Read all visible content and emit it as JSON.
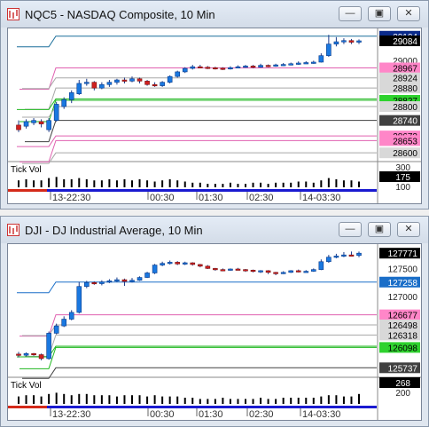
{
  "windows": [
    {
      "title": "NQC5 - NASDAQ Composite, 10 Min",
      "buttons": {
        "minimize": "minimize",
        "restore": "restore",
        "close": "close"
      },
      "price_labels": [
        "29104",
        "29084",
        "29000",
        "28967",
        "28924",
        "28880",
        "28827",
        "28800",
        "28740",
        "28673",
        "28653",
        "28600"
      ],
      "price_badges": {
        "29104": {
          "bg": "#0a2a8a",
          "fg": "#ffffff"
        },
        "29084": {
          "bg": "#000000",
          "fg": "#ffffff"
        },
        "28967": {
          "bg": "#ff86c8",
          "fg": "#000000"
        },
        "28924": {
          "bg": "#d8d8d8",
          "fg": "#000000"
        },
        "28880": {
          "bg": "#d8d8d8",
          "fg": "#000000"
        },
        "28827": {
          "bg": "#2ed22e",
          "fg": "#000000"
        },
        "28800": {
          "bg": "#d8d8d8",
          "fg": "#000000"
        },
        "28740": {
          "bg": "#404040",
          "fg": "#ffffff"
        },
        "28673": {
          "bg": "#ff86c8",
          "fg": "#000000"
        },
        "28653": {
          "bg": "#ff86c8",
          "fg": "#000000"
        },
        "28600": {
          "bg": "#d8d8d8",
          "fg": "#000000"
        }
      },
      "volume_label": "Tick Vol",
      "volume_axis": [
        "300",
        "175",
        "100"
      ],
      "time_labels": [
        "13-22:30",
        "00:30",
        "01:30",
        "02:30",
        "14-03:30"
      ],
      "chart_data": {
        "type": "candlestick",
        "y_range": [
          28570,
          29130
        ],
        "levels": [
          {
            "price": 29104,
            "color": "#1a6e9a"
          },
          {
            "price": 28967,
            "color": "#e060b0"
          },
          {
            "price": 28924,
            "color": "#a8a8a8"
          },
          {
            "price": 28880,
            "color": "#a8a8a8"
          },
          {
            "price": 28833,
            "color": "#20b820"
          },
          {
            "price": 28827,
            "color": "#20b820"
          },
          {
            "price": 28800,
            "color": "#a8a8a8"
          },
          {
            "price": 28740,
            "color": "#404040"
          },
          {
            "price": 28673,
            "color": "#e060b0"
          },
          {
            "price": 28653,
            "color": "#e060b0"
          },
          {
            "price": 28600,
            "color": "#a8a8a8"
          }
        ],
        "candles": [
          [
            28720,
            28700,
            28740,
            28690
          ],
          [
            28715,
            28735,
            28745,
            28705
          ],
          [
            28730,
            28740,
            28750,
            28720
          ],
          [
            28735,
            28725,
            28745,
            28710
          ],
          [
            28700,
            28740,
            28750,
            28690
          ],
          [
            28740,
            28810,
            28820,
            28735
          ],
          [
            28800,
            28830,
            28840,
            28790
          ],
          [
            28830,
            28860,
            28870,
            28815
          ],
          [
            28855,
            28900,
            28915,
            28850
          ],
          [
            28900,
            28905,
            28920,
            28890
          ],
          [
            28905,
            28880,
            28910,
            28870
          ],
          [
            28880,
            28895,
            28905,
            28875
          ],
          [
            28895,
            28905,
            28915,
            28885
          ],
          [
            28905,
            28915,
            28920,
            28895
          ],
          [
            28915,
            28910,
            28925,
            28900
          ],
          [
            28910,
            28920,
            28930,
            28905
          ],
          [
            28920,
            28910,
            28925,
            28900
          ],
          [
            28910,
            28895,
            28915,
            28890
          ],
          [
            28895,
            28890,
            28905,
            28885
          ],
          [
            28890,
            28905,
            28910,
            28885
          ],
          [
            28905,
            28930,
            28935,
            28900
          ],
          [
            28930,
            28950,
            28955,
            28925
          ],
          [
            28950,
            28965,
            28970,
            28945
          ],
          [
            28965,
            28972,
            28980,
            28960
          ],
          [
            28972,
            28970,
            28980,
            28965
          ],
          [
            28970,
            28968,
            28975,
            28962
          ],
          [
            28968,
            28966,
            28972,
            28960
          ],
          [
            28966,
            28964,
            28970,
            28958
          ],
          [
            28964,
            28968,
            28974,
            28960
          ],
          [
            28968,
            28972,
            28978,
            28965
          ],
          [
            28972,
            28975,
            28980,
            28968
          ],
          [
            28975,
            28970,
            28980,
            28965
          ],
          [
            28970,
            28978,
            28985,
            28968
          ],
          [
            28978,
            28975,
            28982,
            28970
          ],
          [
            28975,
            28980,
            28985,
            28972
          ],
          [
            28980,
            28982,
            28988,
            28975
          ],
          [
            28982,
            28985,
            28990,
            28978
          ],
          [
            28985,
            28988,
            28995,
            28980
          ],
          [
            28988,
            28990,
            28996,
            28984
          ],
          [
            28990,
            28992,
            28998,
            28985
          ],
          [
            28992,
            29020,
            29030,
            28990
          ],
          [
            29020,
            29070,
            29110,
            29015
          ],
          [
            29070,
            29080,
            29100,
            29060
          ],
          [
            29080,
            29085,
            29095,
            29070
          ],
          [
            29085,
            29078,
            29092,
            29070
          ],
          [
            29078,
            29084,
            29090,
            29070
          ]
        ],
        "volumes": [
          0.6,
          0.7,
          0.6,
          0.6,
          0.8,
          0.9,
          0.7,
          0.7,
          0.8,
          0.7,
          0.6,
          0.6,
          0.7,
          0.6,
          0.7,
          0.6,
          0.7,
          0.6,
          0.5,
          0.6,
          0.7,
          0.6,
          0.5,
          0.4,
          0.4,
          0.3,
          0.3,
          0.3,
          0.4,
          0.3,
          0.3,
          0.4,
          0.4,
          0.3,
          0.4,
          0.4,
          0.4,
          0.5,
          0.5,
          0.4,
          0.6,
          0.8,
          0.7,
          0.6,
          0.6,
          0.5
        ]
      }
    },
    {
      "title": "DJI - DJ Industrial Average, 10 Min",
      "buttons": {
        "minimize": "minimize",
        "restore": "restore",
        "close": "close"
      },
      "price_labels": [
        "127771",
        "127500",
        "127258",
        "127000",
        "126677",
        "126498",
        "126318",
        "126098",
        "125737"
      ],
      "price_badges": {
        "127771": {
          "bg": "#000000",
          "fg": "#ffffff"
        },
        "127258": {
          "bg": "#1a6ec8",
          "fg": "#ffffff"
        },
        "126677": {
          "bg": "#ff86c8",
          "fg": "#000000"
        },
        "126498": {
          "bg": "#d8d8d8",
          "fg": "#000000"
        },
        "126318": {
          "bg": "#d8d8d8",
          "fg": "#000000"
        },
        "126098": {
          "bg": "#2ed22e",
          "fg": "#000000"
        },
        "125737": {
          "bg": "#404040",
          "fg": "#ffffff"
        }
      },
      "volume_label": "Tick Vol",
      "volume_axis": [
        "268",
        "200"
      ],
      "time_labels": [
        "13-22:30",
        "00:30",
        "01:30",
        "02:30",
        "14-03:30"
      ],
      "chart_data": {
        "type": "candlestick",
        "y_range": [
          125600,
          127900
        ],
        "levels": [
          {
            "price": 127258,
            "color": "#1a6ec8"
          },
          {
            "price": 126677,
            "color": "#e060b0"
          },
          {
            "price": 126498,
            "color": "#a8a8a8"
          },
          {
            "price": 126318,
            "color": "#a8a8a8"
          },
          {
            "price": 126120,
            "color": "#20b820"
          },
          {
            "price": 126098,
            "color": "#20b820"
          },
          {
            "price": 125737,
            "color": "#404040"
          }
        ],
        "candles": [
          [
            125980,
            125960,
            126020,
            125920
          ],
          [
            125960,
            125990,
            126010,
            125940
          ],
          [
            125990,
            125970,
            126000,
            125950
          ],
          [
            125970,
            125900,
            125990,
            125870
          ],
          [
            125900,
            126350,
            126380,
            125880
          ],
          [
            126350,
            126480,
            126520,
            126330
          ],
          [
            126480,
            126600,
            126650,
            126460
          ],
          [
            126600,
            126720,
            126760,
            126580
          ],
          [
            126720,
            127180,
            127260,
            126700
          ],
          [
            127180,
            127250,
            127280,
            127150
          ],
          [
            127250,
            127230,
            127270,
            127210
          ],
          [
            127230,
            127260,
            127290,
            127200
          ],
          [
            127260,
            127280,
            127310,
            127240
          ],
          [
            127280,
            127300,
            127340,
            127260
          ],
          [
            127300,
            127270,
            127320,
            127190
          ],
          [
            127270,
            127290,
            127330,
            127250
          ],
          [
            127290,
            127340,
            127360,
            127280
          ],
          [
            127340,
            127420,
            127440,
            127330
          ],
          [
            127420,
            127560,
            127580,
            127400
          ],
          [
            127560,
            127590,
            127620,
            127540
          ],
          [
            127590,
            127610,
            127640,
            127570
          ],
          [
            127610,
            127580,
            127630,
            127560
          ],
          [
            127580,
            127600,
            127620,
            127560
          ],
          [
            127600,
            127570,
            127610,
            127550
          ],
          [
            127570,
            127540,
            127580,
            127520
          ],
          [
            127540,
            127500,
            127560,
            127490
          ],
          [
            127500,
            127480,
            127510,
            127460
          ],
          [
            127480,
            127470,
            127500,
            127450
          ],
          [
            127470,
            127490,
            127500,
            127460
          ],
          [
            127490,
            127480,
            127510,
            127470
          ],
          [
            127480,
            127470,
            127490,
            127440
          ],
          [
            127470,
            127450,
            127480,
            127430
          ],
          [
            127450,
            127460,
            127470,
            127420
          ],
          [
            127460,
            127430,
            127470,
            127400
          ],
          [
            127430,
            127410,
            127440,
            127380
          ],
          [
            127410,
            127430,
            127450,
            127400
          ],
          [
            127430,
            127460,
            127470,
            127420
          ],
          [
            127460,
            127440,
            127480,
            127430
          ],
          [
            127440,
            127450,
            127470,
            127430
          ],
          [
            127450,
            127480,
            127500,
            127440
          ],
          [
            127480,
            127620,
            127660,
            127470
          ],
          [
            127620,
            127700,
            127740,
            127600
          ],
          [
            127700,
            127720,
            127760,
            127680
          ],
          [
            127720,
            127740,
            127790,
            127700
          ],
          [
            127740,
            127730,
            127800,
            127720
          ],
          [
            127730,
            127771,
            127800,
            127700
          ]
        ],
        "volumes": [
          0.6,
          0.7,
          0.7,
          0.6,
          0.8,
          0.9,
          0.8,
          0.7,
          0.8,
          0.8,
          0.7,
          0.7,
          0.7,
          0.6,
          0.7,
          0.7,
          0.7,
          0.6,
          0.7,
          0.6,
          0.6,
          0.6,
          0.5,
          0.5,
          0.4,
          0.4,
          0.4,
          0.5,
          0.4,
          0.4,
          0.4,
          0.4,
          0.5,
          0.4,
          0.4,
          0.5,
          0.5,
          0.5,
          0.5,
          0.5,
          0.6,
          0.7,
          0.7,
          0.6,
          0.6,
          0.8
        ]
      }
    }
  ]
}
